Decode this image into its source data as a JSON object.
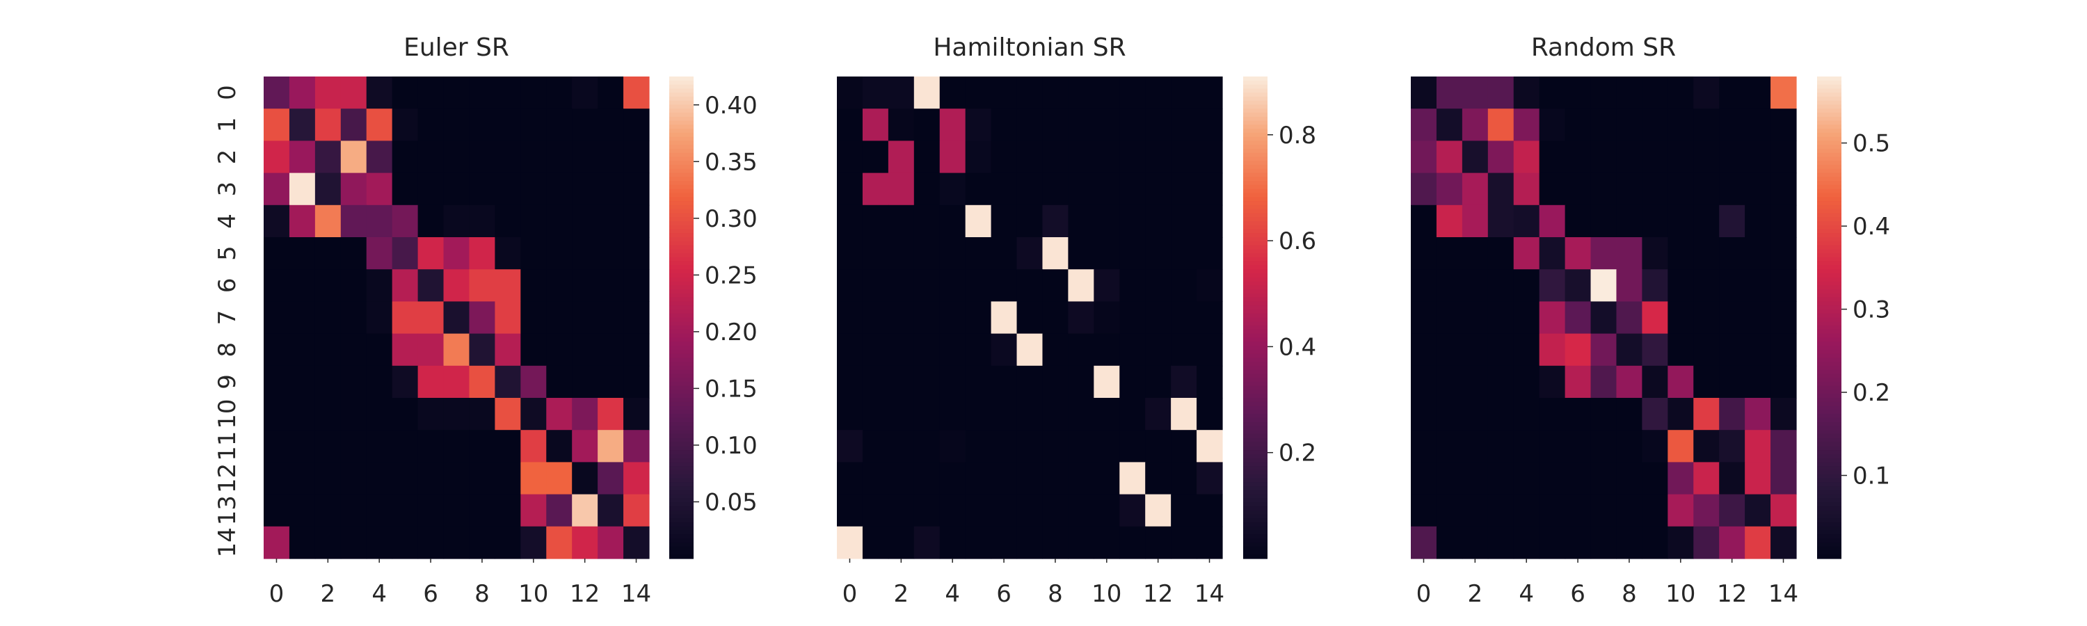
{
  "chart_data": [
    {
      "type": "heatmap",
      "title": "Euler SR",
      "x_tick_labels": [
        "0",
        "2",
        "4",
        "6",
        "8",
        "10",
        "12",
        "14"
      ],
      "y_tick_labels": [
        "0",
        "1",
        "2",
        "3",
        "4",
        "5",
        "6",
        "7",
        "8",
        "9",
        "10",
        "11",
        "12",
        "13",
        "14"
      ],
      "colorbar_range": [
        0,
        0.425
      ],
      "colorbar_ticks": [
        "0.05",
        "0.10",
        "0.15",
        "0.20",
        "0.25",
        "0.30",
        "0.35",
        "0.40"
      ],
      "colormap": "rocket",
      "values": [
        [
          0.13,
          0.19,
          0.24,
          0.24,
          0.02,
          0,
          0,
          0,
          0,
          0,
          0,
          0,
          0.01,
          0,
          0.3
        ],
        [
          0.3,
          0.06,
          0.28,
          0.1,
          0.3,
          0.01,
          0,
          0,
          0,
          0,
          0,
          0,
          0,
          0,
          0
        ],
        [
          0.25,
          0.19,
          0.08,
          0.38,
          0.1,
          0,
          0,
          0,
          0,
          0,
          0,
          0,
          0,
          0,
          0
        ],
        [
          0.18,
          0.42,
          0.05,
          0.18,
          0.2,
          0,
          0,
          0,
          0,
          0,
          0,
          0,
          0,
          0,
          0
        ],
        [
          0.02,
          0.2,
          0.34,
          0.13,
          0.13,
          0.15,
          0,
          0.01,
          0.01,
          0,
          0,
          0,
          0,
          0,
          0
        ],
        [
          0,
          0,
          0,
          0,
          0.15,
          0.1,
          0.25,
          0.2,
          0.25,
          0.01,
          0,
          0,
          0,
          0,
          0
        ],
        [
          0,
          0,
          0,
          0,
          0.01,
          0.22,
          0.05,
          0.25,
          0.28,
          0.28,
          0,
          0,
          0,
          0,
          0
        ],
        [
          0,
          0,
          0,
          0,
          0.01,
          0.28,
          0.28,
          0.04,
          0.16,
          0.28,
          0,
          0,
          0,
          0,
          0
        ],
        [
          0,
          0,
          0,
          0,
          0,
          0.22,
          0.22,
          0.34,
          0.05,
          0.22,
          0,
          0,
          0,
          0,
          0
        ],
        [
          0,
          0,
          0,
          0,
          0,
          0.02,
          0.25,
          0.25,
          0.3,
          0.05,
          0.15,
          0,
          0,
          0,
          0
        ],
        [
          0,
          0,
          0,
          0,
          0,
          0,
          0.01,
          0.01,
          0.01,
          0.3,
          0.02,
          0.21,
          0.16,
          0.27,
          0.01
        ],
        [
          0,
          0,
          0,
          0,
          0,
          0,
          0,
          0,
          0,
          0,
          0.28,
          0.01,
          0.2,
          0.38,
          0.16
        ],
        [
          0,
          0,
          0,
          0,
          0,
          0,
          0,
          0,
          0,
          0,
          0.32,
          0.32,
          0.01,
          0.12,
          0.25
        ],
        [
          0,
          0,
          0,
          0,
          0,
          0,
          0,
          0,
          0,
          0,
          0.22,
          0.12,
          0.4,
          0.04,
          0.28
        ],
        [
          0.2,
          0,
          0,
          0,
          0,
          0,
          0,
          0,
          0,
          0,
          0.03,
          0.3,
          0.25,
          0.2,
          0.03
        ]
      ]
    },
    {
      "type": "heatmap",
      "title": "Hamiltonian SR",
      "x_tick_labels": [
        "0",
        "2",
        "4",
        "6",
        "8",
        "10",
        "12",
        "14"
      ],
      "y_tick_labels": [],
      "colorbar_range": [
        0,
        0.91
      ],
      "colorbar_ticks": [
        "0.2",
        "0.4",
        "0.6",
        "0.8"
      ],
      "colormap": "rocket",
      "values": [
        [
          0.01,
          0.03,
          0.03,
          0.9,
          0,
          0,
          0,
          0,
          0,
          0,
          0,
          0,
          0,
          0,
          0
        ],
        [
          0,
          0.45,
          0.01,
          0,
          0.46,
          0.03,
          0,
          0,
          0,
          0,
          0,
          0,
          0,
          0,
          0
        ],
        [
          0,
          0,
          0.46,
          0,
          0.46,
          0.02,
          0,
          0,
          0,
          0,
          0,
          0,
          0,
          0,
          0
        ],
        [
          0,
          0.46,
          0.46,
          0,
          0.02,
          0,
          0,
          0,
          0,
          0,
          0,
          0,
          0,
          0,
          0
        ],
        [
          0,
          0,
          0,
          0,
          0,
          0.9,
          0,
          0,
          0.06,
          0,
          0,
          0,
          0,
          0,
          0
        ],
        [
          0,
          0,
          0,
          0,
          0,
          0,
          0,
          0.04,
          0.9,
          0,
          0,
          0,
          0,
          0,
          0
        ],
        [
          0,
          0,
          0,
          0,
          0,
          0,
          0,
          0,
          0,
          0.9,
          0.04,
          0,
          0,
          0,
          0.01
        ],
        [
          0,
          0,
          0,
          0,
          0,
          0,
          0.9,
          0,
          0,
          0.04,
          0.01,
          0,
          0,
          0,
          0
        ],
        [
          0,
          0,
          0,
          0,
          0,
          0,
          0.03,
          0.9,
          0,
          0,
          0,
          0,
          0,
          0,
          0
        ],
        [
          0,
          0,
          0,
          0,
          0,
          0,
          0,
          0,
          0,
          0,
          0.9,
          0,
          0,
          0.05,
          0
        ],
        [
          0,
          0,
          0,
          0,
          0,
          0,
          0,
          0,
          0,
          0,
          0,
          0,
          0.04,
          0.9,
          0
        ],
        [
          0.04,
          0,
          0,
          0,
          0.01,
          0,
          0,
          0,
          0,
          0,
          0,
          0,
          0,
          0,
          0.9
        ],
        [
          0,
          0,
          0,
          0,
          0,
          0,
          0,
          0,
          0,
          0,
          0,
          0.9,
          0,
          0,
          0.05
        ],
        [
          0,
          0,
          0,
          0,
          0,
          0,
          0,
          0,
          0,
          0,
          0,
          0.04,
          0.9,
          0,
          0
        ],
        [
          0.9,
          0,
          0,
          0.04,
          0,
          0,
          0,
          0,
          0,
          0,
          0,
          0,
          0,
          0,
          0
        ]
      ]
    },
    {
      "type": "heatmap",
      "title": "Random SR",
      "x_tick_labels": [
        "0",
        "2",
        "4",
        "6",
        "8",
        "10",
        "12",
        "14"
      ],
      "y_tick_labels": [],
      "colorbar_range": [
        0,
        0.58
      ],
      "colorbar_ticks": [
        "0.1",
        "0.2",
        "0.3",
        "0.4",
        "0.5"
      ],
      "colormap": "rocket",
      "values": [
        [
          0.02,
          0.16,
          0.16,
          0.16,
          0.02,
          0,
          0,
          0,
          0,
          0,
          0,
          0.02,
          0,
          0,
          0.45
        ],
        [
          0.18,
          0.04,
          0.22,
          0.42,
          0.22,
          0.01,
          0,
          0,
          0,
          0,
          0,
          0,
          0,
          0,
          0
        ],
        [
          0.2,
          0.3,
          0.05,
          0.22,
          0.32,
          0,
          0,
          0,
          0,
          0,
          0,
          0,
          0,
          0,
          0
        ],
        [
          0.15,
          0.2,
          0.28,
          0.05,
          0.3,
          0,
          0,
          0,
          0,
          0,
          0,
          0,
          0,
          0,
          0
        ],
        [
          0,
          0.33,
          0.28,
          0.05,
          0.04,
          0.26,
          0,
          0,
          0,
          0,
          0,
          0,
          0.07,
          0,
          0
        ],
        [
          0,
          0,
          0,
          0,
          0.28,
          0.04,
          0.28,
          0.2,
          0.2,
          0.02,
          0,
          0,
          0,
          0,
          0
        ],
        [
          0,
          0,
          0,
          0,
          0,
          0.1,
          0.05,
          0.58,
          0.2,
          0.07,
          0,
          0,
          0,
          0,
          0
        ],
        [
          0,
          0,
          0,
          0,
          0,
          0.28,
          0.17,
          0.04,
          0.15,
          0.35,
          0,
          0,
          0,
          0,
          0
        ],
        [
          0,
          0,
          0,
          0,
          0,
          0.32,
          0.35,
          0.2,
          0.04,
          0.1,
          0,
          0,
          0,
          0,
          0
        ],
        [
          0,
          0,
          0,
          0,
          0,
          0.02,
          0.3,
          0.15,
          0.25,
          0.02,
          0.25,
          0,
          0,
          0,
          0
        ],
        [
          0,
          0,
          0,
          0,
          0,
          0,
          0,
          0,
          0,
          0.1,
          0.02,
          0.38,
          0.13,
          0.24,
          0.02
        ],
        [
          0,
          0,
          0,
          0,
          0,
          0,
          0,
          0,
          0,
          0.01,
          0.42,
          0.02,
          0.05,
          0.33,
          0.15
        ],
        [
          0,
          0,
          0,
          0,
          0,
          0,
          0,
          0,
          0,
          0,
          0.2,
          0.33,
          0.02,
          0.33,
          0.15
        ],
        [
          0,
          0,
          0,
          0,
          0,
          0,
          0,
          0,
          0,
          0,
          0.28,
          0.2,
          0.12,
          0.04,
          0.32
        ],
        [
          0.15,
          0,
          0,
          0,
          0,
          0,
          0,
          0,
          0,
          0,
          0.02,
          0.13,
          0.25,
          0.38,
          0.03
        ]
      ]
    }
  ]
}
